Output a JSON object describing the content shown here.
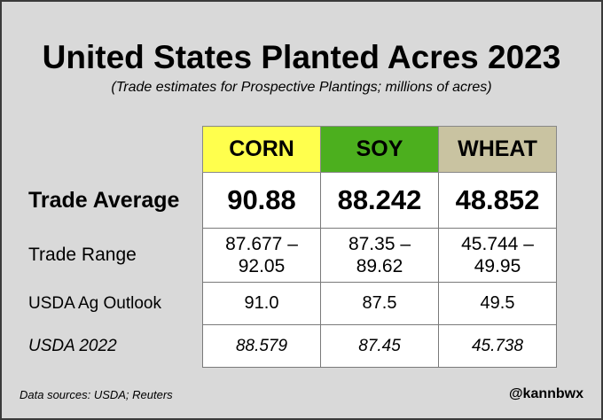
{
  "title": "United States Planted Acres 2023",
  "subtitle": "(Trade estimates for Prospective Plantings; millions of acres)",
  "columns": [
    "CORN",
    "SOY",
    "WHEAT"
  ],
  "rows": [
    {
      "label": "Trade Average",
      "values": [
        "90.88",
        "88.242",
        "48.852"
      ]
    },
    {
      "label": "Trade Range",
      "values": [
        [
          "87.677 –",
          "92.05"
        ],
        [
          "87.35 –",
          "89.62"
        ],
        [
          "45.744 –",
          "49.95"
        ]
      ]
    },
    {
      "label": "USDA Ag Outlook",
      "values": [
        "91.0",
        "87.5",
        "49.5"
      ]
    },
    {
      "label": "USDA 2022",
      "values": [
        "88.579",
        "87.45",
        "45.738"
      ]
    }
  ],
  "footer": {
    "sources": "Data sources: USDA; Reuters",
    "handle": "@kannbwx"
  },
  "colors": {
    "corn": "#ffff4d",
    "soy": "#4caf1e",
    "wheat": "#c9c3a1",
    "background": "#d9d9d9"
  }
}
